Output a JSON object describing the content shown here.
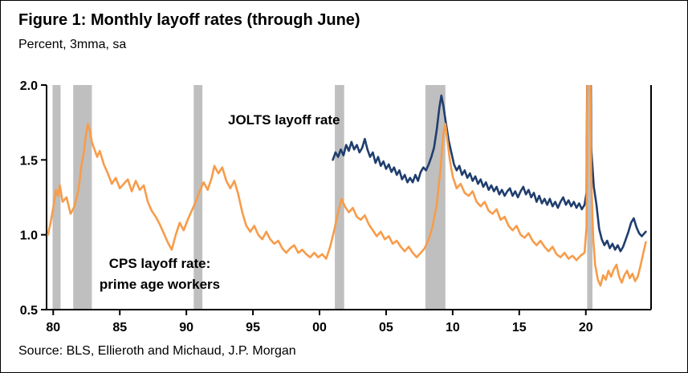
{
  "header": {
    "title": "Figure 1: Monthly layoff rates (through June)",
    "subtitle": "Percent, 3mma, sa"
  },
  "footer": {
    "source": "Source: BLS, Ellieroth and Michaud, J.P. Morgan"
  },
  "chart_data": {
    "type": "line",
    "title": "Figure 1: Monthly layoff rates (through June)",
    "subtitle": "Percent, 3mma, sa",
    "ylabel": "Percent, 3mma, sa",
    "xlim": [
      1979.5,
      2024.9
    ],
    "ylim": [
      0.5,
      2.0
    ],
    "yticks": [
      0.5,
      1.0,
      1.5,
      2.0
    ],
    "ytick_labels": [
      "0.5",
      "1.0",
      "1.5",
      "2.0"
    ],
    "xticks": [
      1980,
      1985,
      1990,
      1995,
      2000,
      2005,
      2010,
      2015,
      2020
    ],
    "xtick_labels": [
      "80",
      "85",
      "90",
      "95",
      "00",
      "05",
      "10",
      "15",
      "20"
    ],
    "grid": false,
    "legend_position": "annotations-on-chart",
    "colors": {
      "recession": "#BFBFBF",
      "axis": "#000000"
    },
    "recessions": [
      [
        1979.95,
        1980.55
      ],
      [
        1981.5,
        1982.9
      ],
      [
        1990.55,
        1991.2
      ],
      [
        2001.15,
        2001.85
      ],
      [
        2007.95,
        2009.45
      ],
      [
        2020.1,
        2020.5
      ]
    ],
    "annotations": [
      {
        "text": "JOLTS layoff rate",
        "x": 2004,
        "y": 1.8
      },
      {
        "text": "CPS layoff rate:\nprime age workers",
        "x": 1989,
        "y": 0.72
      }
    ],
    "series": [
      {
        "name": "JOLTS layoff rate",
        "slug": "jolts",
        "color": "#1F3E6E",
        "points": [
          [
            2001.0,
            1.5
          ],
          [
            2001.2,
            1.55
          ],
          [
            2001.4,
            1.52
          ],
          [
            2001.6,
            1.57
          ],
          [
            2001.8,
            1.53
          ],
          [
            2002.0,
            1.6
          ],
          [
            2002.2,
            1.56
          ],
          [
            2002.4,
            1.62
          ],
          [
            2002.6,
            1.57
          ],
          [
            2002.8,
            1.6
          ],
          [
            2003.0,
            1.55
          ],
          [
            2003.2,
            1.58
          ],
          [
            2003.4,
            1.64
          ],
          [
            2003.6,
            1.57
          ],
          [
            2003.8,
            1.52
          ],
          [
            2004.0,
            1.55
          ],
          [
            2004.2,
            1.48
          ],
          [
            2004.4,
            1.52
          ],
          [
            2004.6,
            1.46
          ],
          [
            2004.8,
            1.49
          ],
          [
            2005.0,
            1.44
          ],
          [
            2005.2,
            1.47
          ],
          [
            2005.4,
            1.42
          ],
          [
            2005.6,
            1.45
          ],
          [
            2005.8,
            1.4
          ],
          [
            2006.0,
            1.43
          ],
          [
            2006.2,
            1.37
          ],
          [
            2006.4,
            1.4
          ],
          [
            2006.6,
            1.35
          ],
          [
            2006.8,
            1.38
          ],
          [
            2007.0,
            1.35
          ],
          [
            2007.2,
            1.4
          ],
          [
            2007.4,
            1.36
          ],
          [
            2007.6,
            1.42
          ],
          [
            2007.8,
            1.45
          ],
          [
            2008.0,
            1.43
          ],
          [
            2008.2,
            1.47
          ],
          [
            2008.4,
            1.52
          ],
          [
            2008.6,
            1.58
          ],
          [
            2008.8,
            1.7
          ],
          [
            2009.0,
            1.85
          ],
          [
            2009.15,
            1.93
          ],
          [
            2009.3,
            1.86
          ],
          [
            2009.5,
            1.74
          ],
          [
            2009.7,
            1.63
          ],
          [
            2009.9,
            1.55
          ],
          [
            2010.1,
            1.47
          ],
          [
            2010.3,
            1.43
          ],
          [
            2010.5,
            1.46
          ],
          [
            2010.7,
            1.4
          ],
          [
            2010.9,
            1.43
          ],
          [
            2011.1,
            1.38
          ],
          [
            2011.3,
            1.41
          ],
          [
            2011.5,
            1.36
          ],
          [
            2011.7,
            1.39
          ],
          [
            2011.9,
            1.34
          ],
          [
            2012.1,
            1.37
          ],
          [
            2012.3,
            1.32
          ],
          [
            2012.5,
            1.35
          ],
          [
            2012.7,
            1.3
          ],
          [
            2012.9,
            1.33
          ],
          [
            2013.1,
            1.29
          ],
          [
            2013.3,
            1.32
          ],
          [
            2013.5,
            1.27
          ],
          [
            2013.7,
            1.3
          ],
          [
            2013.9,
            1.26
          ],
          [
            2014.1,
            1.29
          ],
          [
            2014.3,
            1.31
          ],
          [
            2014.5,
            1.26
          ],
          [
            2014.7,
            1.29
          ],
          [
            2014.9,
            1.25
          ],
          [
            2015.1,
            1.29
          ],
          [
            2015.3,
            1.32
          ],
          [
            2015.5,
            1.27
          ],
          [
            2015.7,
            1.3
          ],
          [
            2015.9,
            1.25
          ],
          [
            2016.1,
            1.28
          ],
          [
            2016.3,
            1.22
          ],
          [
            2016.5,
            1.26
          ],
          [
            2016.7,
            1.21
          ],
          [
            2016.9,
            1.24
          ],
          [
            2017.1,
            1.2
          ],
          [
            2017.3,
            1.24
          ],
          [
            2017.5,
            1.19
          ],
          [
            2017.7,
            1.22
          ],
          [
            2017.9,
            1.18
          ],
          [
            2018.1,
            1.22
          ],
          [
            2018.3,
            1.25
          ],
          [
            2018.5,
            1.2
          ],
          [
            2018.7,
            1.23
          ],
          [
            2018.9,
            1.19
          ],
          [
            2019.1,
            1.22
          ],
          [
            2019.3,
            1.18
          ],
          [
            2019.5,
            1.21
          ],
          [
            2019.7,
            1.17
          ],
          [
            2019.9,
            1.2
          ],
          [
            2020.05,
            1.28
          ],
          [
            2020.2,
            3.6
          ],
          [
            2020.4,
            1.58
          ],
          [
            2020.6,
            1.32
          ],
          [
            2020.8,
            1.2
          ],
          [
            2021.0,
            1.04
          ],
          [
            2021.2,
            0.97
          ],
          [
            2021.4,
            0.93
          ],
          [
            2021.6,
            0.96
          ],
          [
            2021.8,
            0.91
          ],
          [
            2022.0,
            0.94
          ],
          [
            2022.2,
            0.9
          ],
          [
            2022.4,
            0.93
          ],
          [
            2022.6,
            0.89
          ],
          [
            2022.8,
            0.92
          ],
          [
            2023.0,
            0.97
          ],
          [
            2023.2,
            1.02
          ],
          [
            2023.4,
            1.08
          ],
          [
            2023.6,
            1.11
          ],
          [
            2023.8,
            1.05
          ],
          [
            2024.0,
            1.01
          ],
          [
            2024.2,
            0.99
          ],
          [
            2024.5,
            1.02
          ]
        ]
      },
      {
        "name": "CPS layoff rate: prime age workers",
        "slug": "cps",
        "color": "#F79C4A",
        "points": [
          [
            1979.6,
            1.0
          ],
          [
            1979.8,
            1.08
          ],
          [
            1980.0,
            1.18
          ],
          [
            1980.2,
            1.3
          ],
          [
            1980.35,
            1.26
          ],
          [
            1980.5,
            1.33
          ],
          [
            1980.7,
            1.22
          ],
          [
            1981.0,
            1.25
          ],
          [
            1981.3,
            1.14
          ],
          [
            1981.6,
            1.19
          ],
          [
            1981.9,
            1.3
          ],
          [
            1982.1,
            1.45
          ],
          [
            1982.3,
            1.55
          ],
          [
            1982.45,
            1.66
          ],
          [
            1982.6,
            1.74
          ],
          [
            1982.75,
            1.7
          ],
          [
            1982.9,
            1.62
          ],
          [
            1983.1,
            1.57
          ],
          [
            1983.3,
            1.52
          ],
          [
            1983.5,
            1.56
          ],
          [
            1983.8,
            1.47
          ],
          [
            1984.1,
            1.41
          ],
          [
            1984.4,
            1.34
          ],
          [
            1984.7,
            1.38
          ],
          [
            1985.0,
            1.31
          ],
          [
            1985.3,
            1.34
          ],
          [
            1985.6,
            1.37
          ],
          [
            1985.9,
            1.29
          ],
          [
            1986.2,
            1.36
          ],
          [
            1986.5,
            1.3
          ],
          [
            1986.8,
            1.33
          ],
          [
            1987.1,
            1.22
          ],
          [
            1987.4,
            1.16
          ],
          [
            1987.7,
            1.12
          ],
          [
            1988.0,
            1.07
          ],
          [
            1988.3,
            1.01
          ],
          [
            1988.6,
            0.95
          ],
          [
            1988.9,
            0.9
          ],
          [
            1989.2,
            1.0
          ],
          [
            1989.5,
            1.08
          ],
          [
            1989.8,
            1.03
          ],
          [
            1990.1,
            1.1
          ],
          [
            1990.4,
            1.16
          ],
          [
            1990.7,
            1.22
          ],
          [
            1991.0,
            1.29
          ],
          [
            1991.3,
            1.35
          ],
          [
            1991.6,
            1.3
          ],
          [
            1991.9,
            1.38
          ],
          [
            1992.1,
            1.46
          ],
          [
            1992.4,
            1.41
          ],
          [
            1992.7,
            1.45
          ],
          [
            1993.0,
            1.36
          ],
          [
            1993.3,
            1.31
          ],
          [
            1993.6,
            1.36
          ],
          [
            1993.9,
            1.27
          ],
          [
            1994.2,
            1.15
          ],
          [
            1994.5,
            1.06
          ],
          [
            1994.8,
            1.02
          ],
          [
            1995.1,
            1.06
          ],
          [
            1995.4,
            1.0
          ],
          [
            1995.7,
            0.97
          ],
          [
            1996.0,
            1.02
          ],
          [
            1996.3,
            0.97
          ],
          [
            1996.6,
            0.94
          ],
          [
            1996.9,
            0.96
          ],
          [
            1997.2,
            0.91
          ],
          [
            1997.5,
            0.88
          ],
          [
            1997.8,
            0.91
          ],
          [
            1998.1,
            0.93
          ],
          [
            1998.4,
            0.88
          ],
          [
            1998.7,
            0.9
          ],
          [
            1999.0,
            0.87
          ],
          [
            1999.3,
            0.85
          ],
          [
            1999.6,
            0.88
          ],
          [
            1999.9,
            0.85
          ],
          [
            2000.2,
            0.87
          ],
          [
            2000.5,
            0.84
          ],
          [
            2000.8,
            0.92
          ],
          [
            2001.1,
            1.03
          ],
          [
            2001.4,
            1.15
          ],
          [
            2001.65,
            1.24
          ],
          [
            2001.9,
            1.19
          ],
          [
            2002.2,
            1.15
          ],
          [
            2002.5,
            1.18
          ],
          [
            2002.8,
            1.12
          ],
          [
            2003.1,
            1.1
          ],
          [
            2003.4,
            1.13
          ],
          [
            2003.7,
            1.07
          ],
          [
            2004.0,
            1.03
          ],
          [
            2004.3,
            0.99
          ],
          [
            2004.6,
            1.02
          ],
          [
            2004.9,
            0.97
          ],
          [
            2005.2,
            0.99
          ],
          [
            2005.5,
            0.94
          ],
          [
            2005.8,
            0.96
          ],
          [
            2006.1,
            0.92
          ],
          [
            2006.4,
            0.89
          ],
          [
            2006.7,
            0.92
          ],
          [
            2007.0,
            0.88
          ],
          [
            2007.3,
            0.85
          ],
          [
            2007.6,
            0.88
          ],
          [
            2007.9,
            0.91
          ],
          [
            2008.2,
            0.97
          ],
          [
            2008.5,
            1.06
          ],
          [
            2008.8,
            1.2
          ],
          [
            2009.1,
            1.45
          ],
          [
            2009.3,
            1.68
          ],
          [
            2009.45,
            1.74
          ],
          [
            2009.6,
            1.63
          ],
          [
            2009.8,
            1.49
          ],
          [
            2010.0,
            1.39
          ],
          [
            2010.3,
            1.31
          ],
          [
            2010.6,
            1.34
          ],
          [
            2010.9,
            1.28
          ],
          [
            2011.2,
            1.26
          ],
          [
            2011.5,
            1.29
          ],
          [
            2011.8,
            1.22
          ],
          [
            2012.1,
            1.19
          ],
          [
            2012.4,
            1.22
          ],
          [
            2012.7,
            1.16
          ],
          [
            2013.0,
            1.14
          ],
          [
            2013.3,
            1.17
          ],
          [
            2013.6,
            1.1
          ],
          [
            2013.9,
            1.12
          ],
          [
            2014.2,
            1.06
          ],
          [
            2014.5,
            1.03
          ],
          [
            2014.8,
            1.06
          ],
          [
            2015.1,
            1.0
          ],
          [
            2015.4,
            0.98
          ],
          [
            2015.7,
            1.01
          ],
          [
            2016.0,
            0.96
          ],
          [
            2016.3,
            0.93
          ],
          [
            2016.6,
            0.96
          ],
          [
            2016.9,
            0.92
          ],
          [
            2017.2,
            0.89
          ],
          [
            2017.5,
            0.92
          ],
          [
            2017.8,
            0.87
          ],
          [
            2018.1,
            0.85
          ],
          [
            2018.4,
            0.88
          ],
          [
            2018.7,
            0.84
          ],
          [
            2019.0,
            0.86
          ],
          [
            2019.3,
            0.83
          ],
          [
            2019.6,
            0.86
          ],
          [
            2019.9,
            0.88
          ],
          [
            2020.05,
            1.05
          ],
          [
            2020.2,
            3.6
          ],
          [
            2020.4,
            1.4
          ],
          [
            2020.55,
            0.98
          ],
          [
            2020.7,
            0.8
          ],
          [
            2020.9,
            0.7
          ],
          [
            2021.1,
            0.66
          ],
          [
            2021.3,
            0.73
          ],
          [
            2021.5,
            0.7
          ],
          [
            2021.7,
            0.76
          ],
          [
            2021.9,
            0.72
          ],
          [
            2022.1,
            0.77
          ],
          [
            2022.3,
            0.8
          ],
          [
            2022.5,
            0.72
          ],
          [
            2022.7,
            0.68
          ],
          [
            2022.9,
            0.73
          ],
          [
            2023.1,
            0.76
          ],
          [
            2023.3,
            0.71
          ],
          [
            2023.5,
            0.74
          ],
          [
            2023.7,
            0.69
          ],
          [
            2023.9,
            0.72
          ],
          [
            2024.1,
            0.79
          ],
          [
            2024.3,
            0.87
          ],
          [
            2024.5,
            0.95
          ]
        ]
      }
    ]
  }
}
